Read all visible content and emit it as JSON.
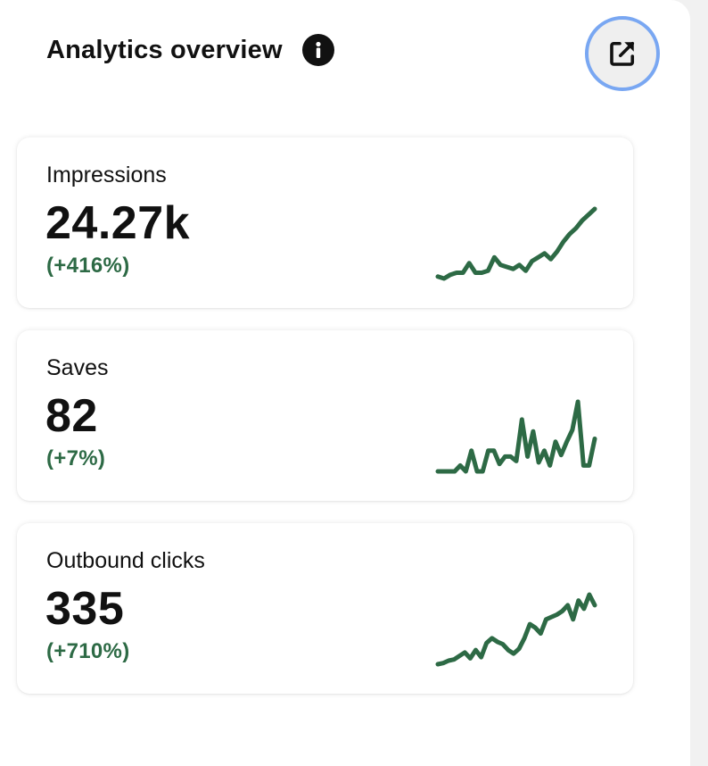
{
  "header": {
    "title": "Analytics overview",
    "info_icon": "info-icon",
    "open_icon": "external-link-icon"
  },
  "colors": {
    "accent_green": "#2d6a45",
    "focus_ring": "#79a7f2"
  },
  "metrics": [
    {
      "label": "Impressions",
      "value": "24.27k",
      "change": "(+416%)",
      "trend": [
        3,
        2,
        4,
        5,
        5,
        10,
        5,
        5,
        6,
        13,
        9,
        8,
        7,
        9,
        6,
        11,
        13,
        15,
        12,
        16,
        21,
        25,
        28,
        32,
        35,
        38
      ]
    },
    {
      "label": "Saves",
      "value": "82",
      "change": "(+7%)",
      "trend": [
        0,
        0,
        0,
        0,
        4,
        0,
        14,
        0,
        0,
        14,
        14,
        5,
        10,
        10,
        7,
        35,
        10,
        27,
        6,
        14,
        4,
        20,
        11,
        20,
        28,
        47,
        4,
        4,
        22
      ]
    },
    {
      "label": "Outbound clicks",
      "value": "335",
      "change": "(+710%)",
      "trend": [
        0,
        1,
        3,
        4,
        7,
        10,
        5,
        12,
        6,
        18,
        22,
        19,
        17,
        12,
        9,
        13,
        22,
        34,
        31,
        26,
        38,
        40,
        42,
        45,
        50,
        38,
        54,
        47,
        59,
        50
      ]
    }
  ]
}
